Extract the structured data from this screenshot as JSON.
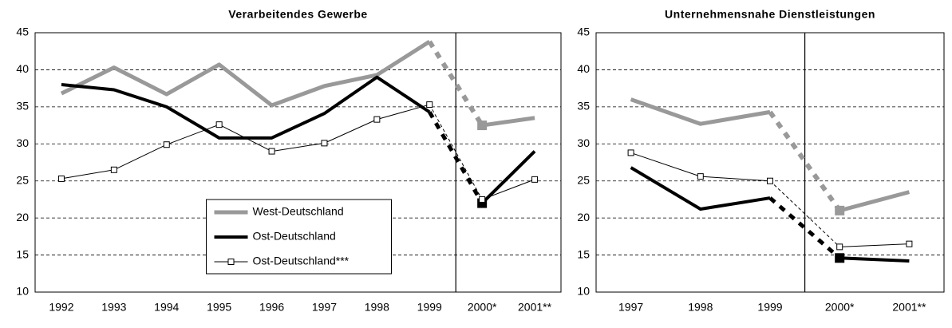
{
  "chart_data": [
    {
      "type": "line",
      "title": "Verarbeitendes Gewerbe",
      "categories": [
        "1992",
        "1993",
        "1994",
        "1995",
        "1996",
        "1997",
        "1998",
        "1999",
        "2000*",
        "2001**"
      ],
      "ylim": [
        10,
        45
      ],
      "yticks": [
        10,
        15,
        20,
        25,
        30,
        35,
        40,
        45
      ],
      "grid": true,
      "legend": "lower center",
      "series": [
        {
          "name": "West-Deutschland",
          "color": "#999999",
          "values": [
            36.8,
            40.3,
            36.7,
            40.7,
            35.2,
            37.8,
            39.3,
            43.8,
            32.5,
            33.5
          ]
        },
        {
          "name": "Ost-Deutschland",
          "color": "#000000",
          "values": [
            38.0,
            37.3,
            35.0,
            30.8,
            30.8,
            34.1,
            39.0,
            34.3,
            22.0,
            29.0
          ]
        },
        {
          "name": "Ost-Deutschland***",
          "color": "#000000",
          "marker": "square",
          "values": [
            25.3,
            26.5,
            29.9,
            32.6,
            29.0,
            30.1,
            33.3,
            35.3,
            22.5,
            25.2
          ]
        }
      ]
    },
    {
      "type": "line",
      "title": "Unternehmensnahe Dienstleistungen",
      "categories": [
        "1997",
        "1998",
        "1999",
        "2000*",
        "2001**"
      ],
      "ylim": [
        10,
        45
      ],
      "yticks": [
        10,
        15,
        20,
        25,
        30,
        35,
        40,
        45
      ],
      "grid": true,
      "legend": false,
      "series": [
        {
          "color": "#999999",
          "values": [
            36.0,
            32.7,
            34.3,
            21.0,
            23.5
          ]
        },
        {
          "color": "#000000",
          "values": [
            26.8,
            21.2,
            22.7,
            14.6,
            14.2
          ]
        },
        {
          "color": "#000000",
          "marker": "square",
          "values": [
            28.8,
            25.6,
            25.0,
            16.1,
            16.5
          ]
        }
      ]
    }
  ]
}
